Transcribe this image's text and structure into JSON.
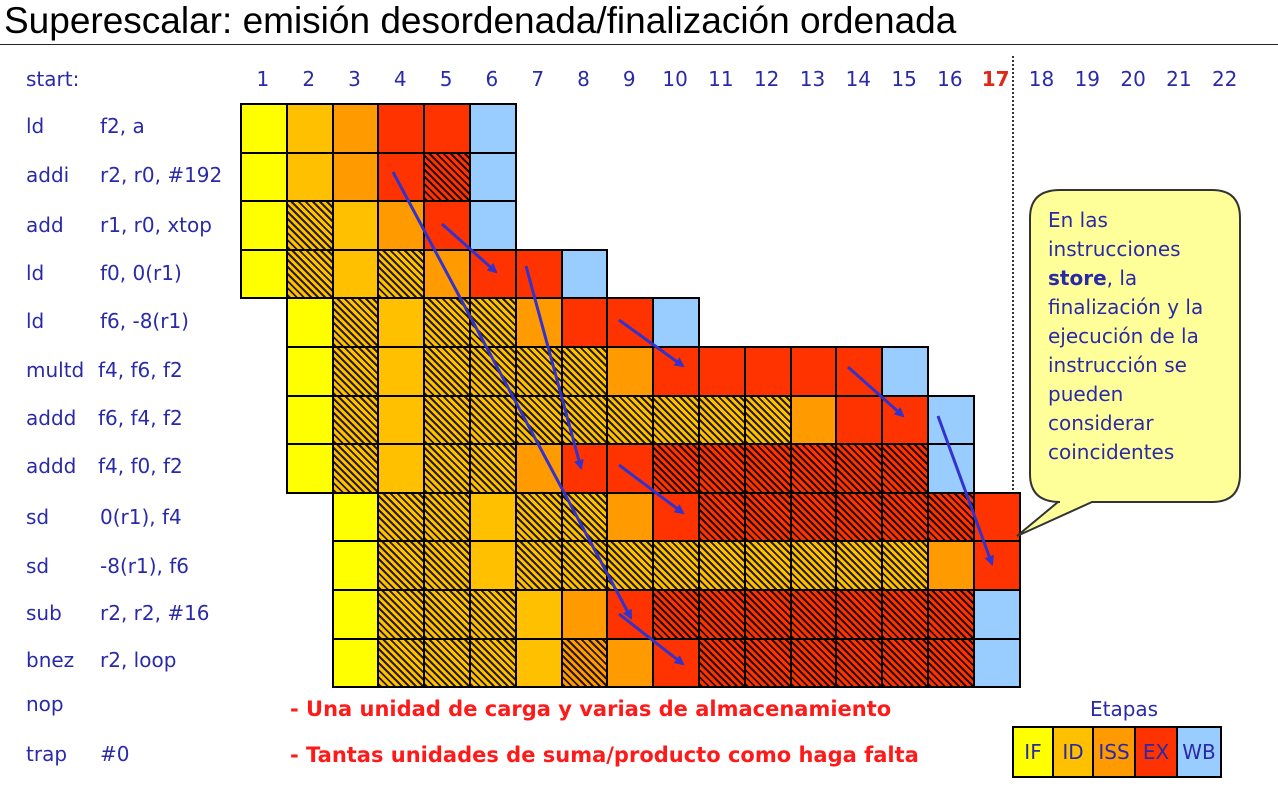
{
  "title": "Superescalar: emisión desordenada/finalización ordenada",
  "start_label": "start:",
  "cycles": [
    "1",
    "2",
    "3",
    "4",
    "5",
    "6",
    "7",
    "8",
    "9",
    "10",
    "11",
    "12",
    "13",
    "14",
    "15",
    "16",
    "17",
    "18",
    "19",
    "20",
    "21",
    "22"
  ],
  "highlight_cycle": "17",
  "instructions": [
    {
      "op": "ld",
      "args": "f2, a",
      "start": 1,
      "stages": [
        "IF",
        "ID",
        "ISS",
        "EX",
        "EX",
        "WB"
      ]
    },
    {
      "op": "addi",
      "args": "r2, r0, #192",
      "start": 1,
      "stages": [
        "IF",
        "ID",
        "ISS",
        "EX",
        "EX*",
        "WB"
      ]
    },
    {
      "op": "add",
      "args": "r1, r0, xtop",
      "start": 1,
      "stages": [
        "IF",
        "ID*",
        "ID",
        "ISS",
        "EX",
        "WB"
      ]
    },
    {
      "op": "ld",
      "args": "f0, 0(r1)",
      "start": 1,
      "stages": [
        "IF",
        "ID*",
        "ID",
        "ID*",
        "ISS",
        "EX",
        "EX",
        "WB"
      ]
    },
    {
      "op": "ld",
      "args": "f6, -8(r1)",
      "start": 2,
      "stages": [
        "IF",
        "ID*",
        "ID",
        "ID*",
        "ID*",
        "ISS",
        "EX",
        "EX",
        "WB"
      ]
    },
    {
      "op": "multd",
      "args": "f4, f6, f2",
      "start": 2,
      "stages": [
        "IF",
        "ID*",
        "ID",
        "ID*",
        "ID*",
        "ID*",
        "ID*",
        "ISS",
        "EX",
        "EX",
        "EX",
        "EX",
        "EX",
        "WB"
      ]
    },
    {
      "op": "addd",
      "args": "f6, f4, f2",
      "start": 2,
      "stages": [
        "IF",
        "ID*",
        "ID",
        "ID*",
        "ID*",
        "ID*",
        "ID*",
        "ID*",
        "ID*",
        "ID*",
        "ID*",
        "ISS",
        "EX",
        "EX",
        "WB"
      ]
    },
    {
      "op": "addd",
      "args": "f4, f0, f2",
      "start": 2,
      "stages": [
        "IF",
        "ID*",
        "ID",
        "ID*",
        "ID*",
        "ISS",
        "EX",
        "EX",
        "EX*",
        "EX*",
        "EX*",
        "EX*",
        "EX*",
        "EX*",
        "WB"
      ]
    },
    {
      "op": "sd",
      "args": "0(r1), f4",
      "start": 3,
      "stages": [
        "IF",
        "ID*",
        "ID*",
        "ID",
        "ID*",
        "ID*",
        "ISS",
        "EX",
        "EX*",
        "EX*",
        "EX*",
        "EX*",
        "EX*",
        "EX*",
        "EX"
      ]
    },
    {
      "op": "sd",
      "args": "-8(r1), f6",
      "start": 3,
      "stages": [
        "IF",
        "ID*",
        "ID*",
        "ID",
        "ID*",
        "ID*",
        "ID*",
        "ID*",
        "ID*",
        "ID*",
        "ID*",
        "ID*",
        "ID*",
        "ISS",
        "EX"
      ]
    },
    {
      "op": "sub",
      "args": "r2, r2, #16",
      "start": 3,
      "stages": [
        "IF",
        "ID*",
        "ID*",
        "ID*",
        "ID",
        "ISS",
        "EX",
        "EX*",
        "EX*",
        "EX*",
        "EX*",
        "EX*",
        "EX*",
        "EX*",
        "WB"
      ]
    },
    {
      "op": "bnez",
      "args": "r2, loop",
      "start": 3,
      "stages": [
        "IF",
        "ID*",
        "ID*",
        "ID*",
        "ID",
        "ISS*",
        "ISS",
        "EX",
        "EX*",
        "EX*",
        "EX*",
        "EX*",
        "EX*",
        "EX*",
        "WB"
      ]
    },
    {
      "op": "nop",
      "args": "",
      "start": 0,
      "stages": []
    },
    {
      "op": "trap",
      "args": "#0",
      "start": 0,
      "stages": []
    }
  ],
  "stage_colors": {
    "IF": "#ffff00",
    "ID": "#ffc000",
    "ISS": "#ff9a00",
    "EX": "#ff3300",
    "WB": "#99ccff"
  },
  "callout": {
    "line1": "En las instrucciones",
    "bold": "store",
    "line2": ", la finalización y la ejecución de la instrucción se pueden considerar coincidentes"
  },
  "notes": [
    "- Una unidad de carga y varias de almacenamiento",
    "- Tantas unidades de suma/producto como haga falta"
  ],
  "legend": {
    "title": "Etapas",
    "items": [
      {
        "label": "IF",
        "color": "#ffff00"
      },
      {
        "label": "ID",
        "color": "#ffc000"
      },
      {
        "label": "ISS",
        "color": "#ff9a00"
      },
      {
        "label": "EX",
        "color": "#ff3300"
      },
      {
        "label": "WB",
        "color": "#99ccff"
      }
    ]
  },
  "arrow_color": "#3333cc"
}
